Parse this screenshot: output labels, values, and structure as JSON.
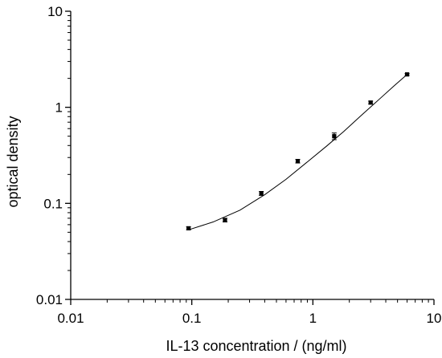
{
  "chart_data": {
    "type": "scatter",
    "title": "",
    "xlabel": "IL-13 concentration / (ng/ml)",
    "ylabel": "optical density",
    "x_scale": "log",
    "y_scale": "log",
    "xlim": [
      0.01,
      10
    ],
    "ylim": [
      0.01,
      10
    ],
    "x_ticks": [
      {
        "value": 0.01,
        "label": "0.01"
      },
      {
        "value": 0.1,
        "label": "0.1"
      },
      {
        "value": 1,
        "label": "1"
      },
      {
        "value": 10,
        "label": "10"
      }
    ],
    "y_ticks": [
      {
        "value": 0.01,
        "label": "0.01"
      },
      {
        "value": 0.1,
        "label": "0.1"
      },
      {
        "value": 1,
        "label": "1"
      },
      {
        "value": 10,
        "label": "10"
      }
    ],
    "grid": false,
    "legend": "none",
    "series": [
      {
        "points": [
          {
            "x": 0.094,
            "y": 0.055,
            "err": 0.002
          },
          {
            "x": 0.188,
            "y": 0.067,
            "err": 0.003
          },
          {
            "x": 0.375,
            "y": 0.127,
            "err": 0.006
          },
          {
            "x": 0.75,
            "y": 0.275,
            "err": 0.012
          },
          {
            "x": 1.5,
            "y": 0.5,
            "err": 0.04
          },
          {
            "x": 3,
            "y": 1.12,
            "err": 0.04
          },
          {
            "x": 6,
            "y": 2.2,
            "err": 0.05
          }
        ],
        "fit_curve": [
          {
            "x": 0.094,
            "y": 0.053
          },
          {
            "x": 0.15,
            "y": 0.064
          },
          {
            "x": 0.25,
            "y": 0.085
          },
          {
            "x": 0.4,
            "y": 0.123
          },
          {
            "x": 0.6,
            "y": 0.178
          },
          {
            "x": 0.9,
            "y": 0.27
          },
          {
            "x": 1.3,
            "y": 0.395
          },
          {
            "x": 1.8,
            "y": 0.56
          },
          {
            "x": 2.5,
            "y": 0.82
          },
          {
            "x": 3.5,
            "y": 1.2
          },
          {
            "x": 4.7,
            "y": 1.68
          },
          {
            "x": 6,
            "y": 2.2
          }
        ]
      }
    ]
  }
}
